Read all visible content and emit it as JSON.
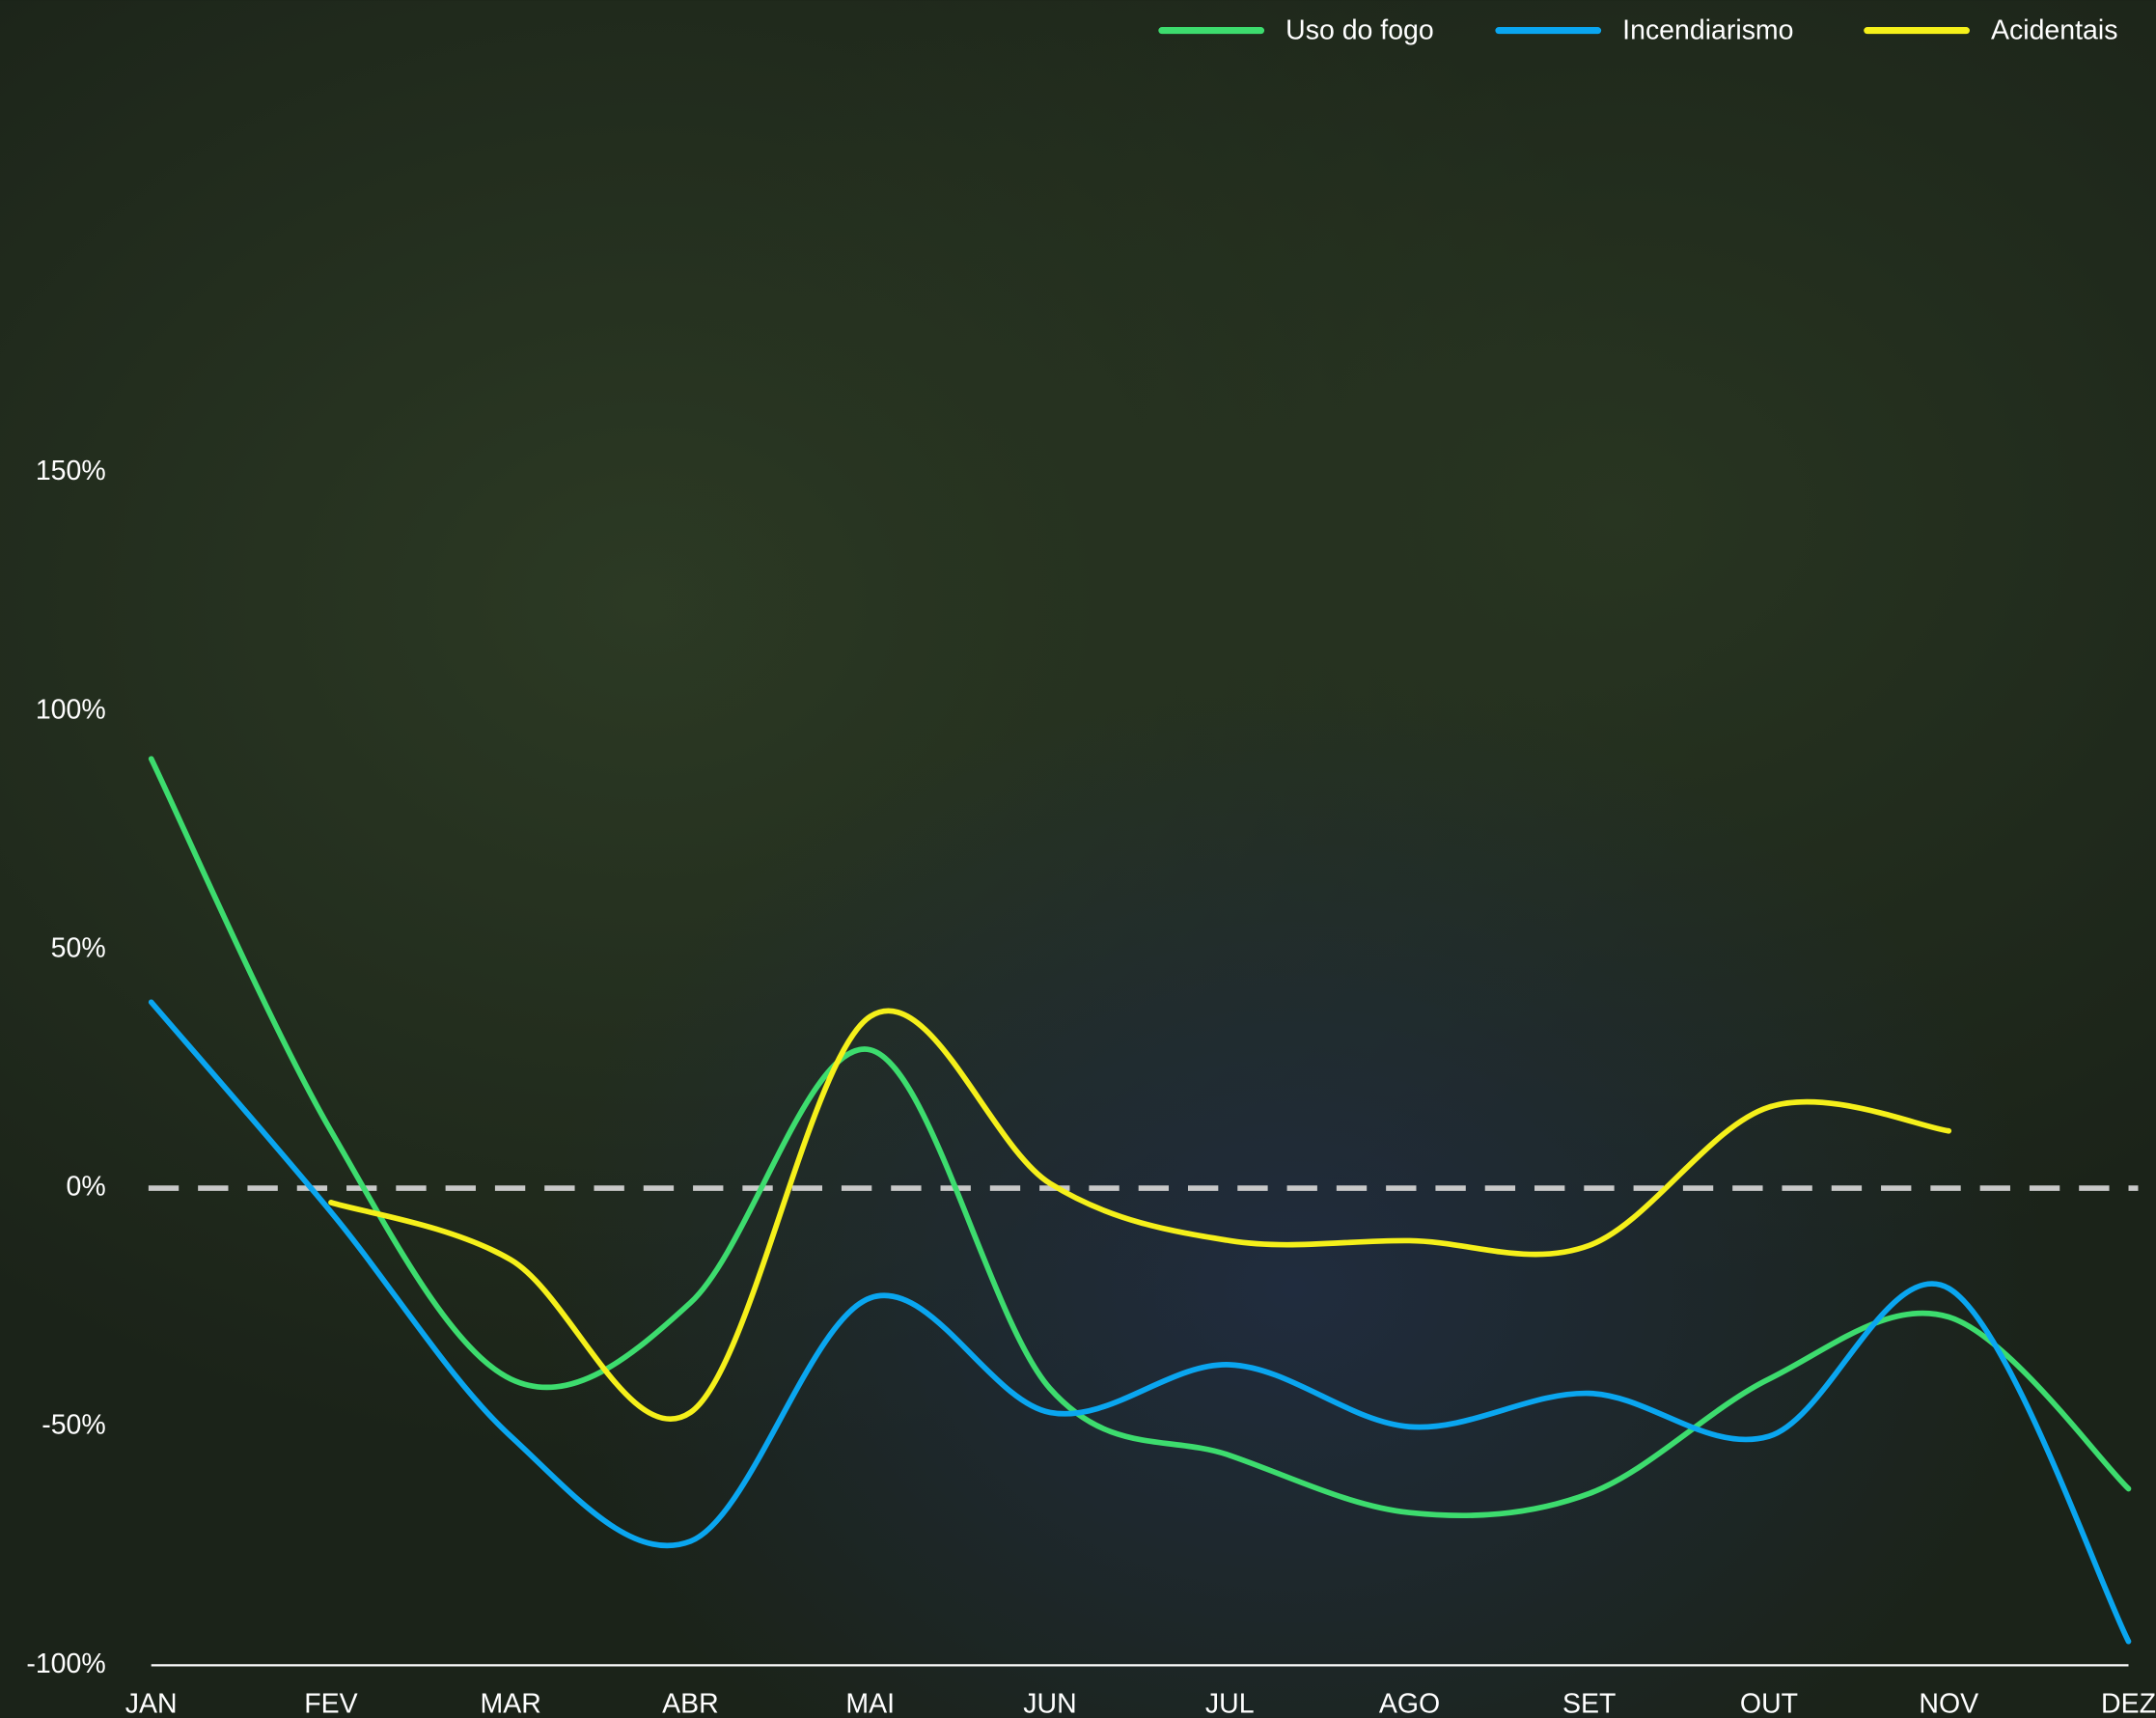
{
  "chart_data": {
    "type": "line",
    "categories": [
      "JAN",
      "FEV",
      "MAR",
      "ABR",
      "MAI",
      "JUN",
      "JUL",
      "AGO",
      "SET",
      "OUT",
      "NOV",
      "DEZ"
    ],
    "series": [
      {
        "name": "Uso do fogo",
        "color": "#3ddc6e",
        "values": [
          90,
          12,
          -40,
          -24,
          29,
          -42,
          -56,
          -68,
          -64,
          -40,
          -27,
          -63
        ]
      },
      {
        "name": "Incendiarismo",
        "color": "#0aa6f0",
        "values": [
          39,
          -5,
          -52,
          -74,
          -23,
          -47,
          -37,
          -50,
          -43,
          -52,
          -21,
          -95
        ]
      },
      {
        "name": "Acidentais",
        "color": "#f5f01a",
        "values": [
          null,
          -3,
          -15,
          -47,
          36,
          1,
          -11,
          -11,
          -12,
          17,
          12,
          null
        ]
      }
    ],
    "ylim": [
      -111,
      249
    ],
    "yticks": [
      {
        "value": -100,
        "label": "-100%"
      },
      {
        "value": -50,
        "label": "-50%"
      },
      {
        "value": 0,
        "label": "0%"
      },
      {
        "value": 50,
        "label": "50%"
      },
      {
        "value": 100,
        "label": "100%"
      },
      {
        "value": 150,
        "label": "150%"
      }
    ],
    "legend": "top-right"
  }
}
